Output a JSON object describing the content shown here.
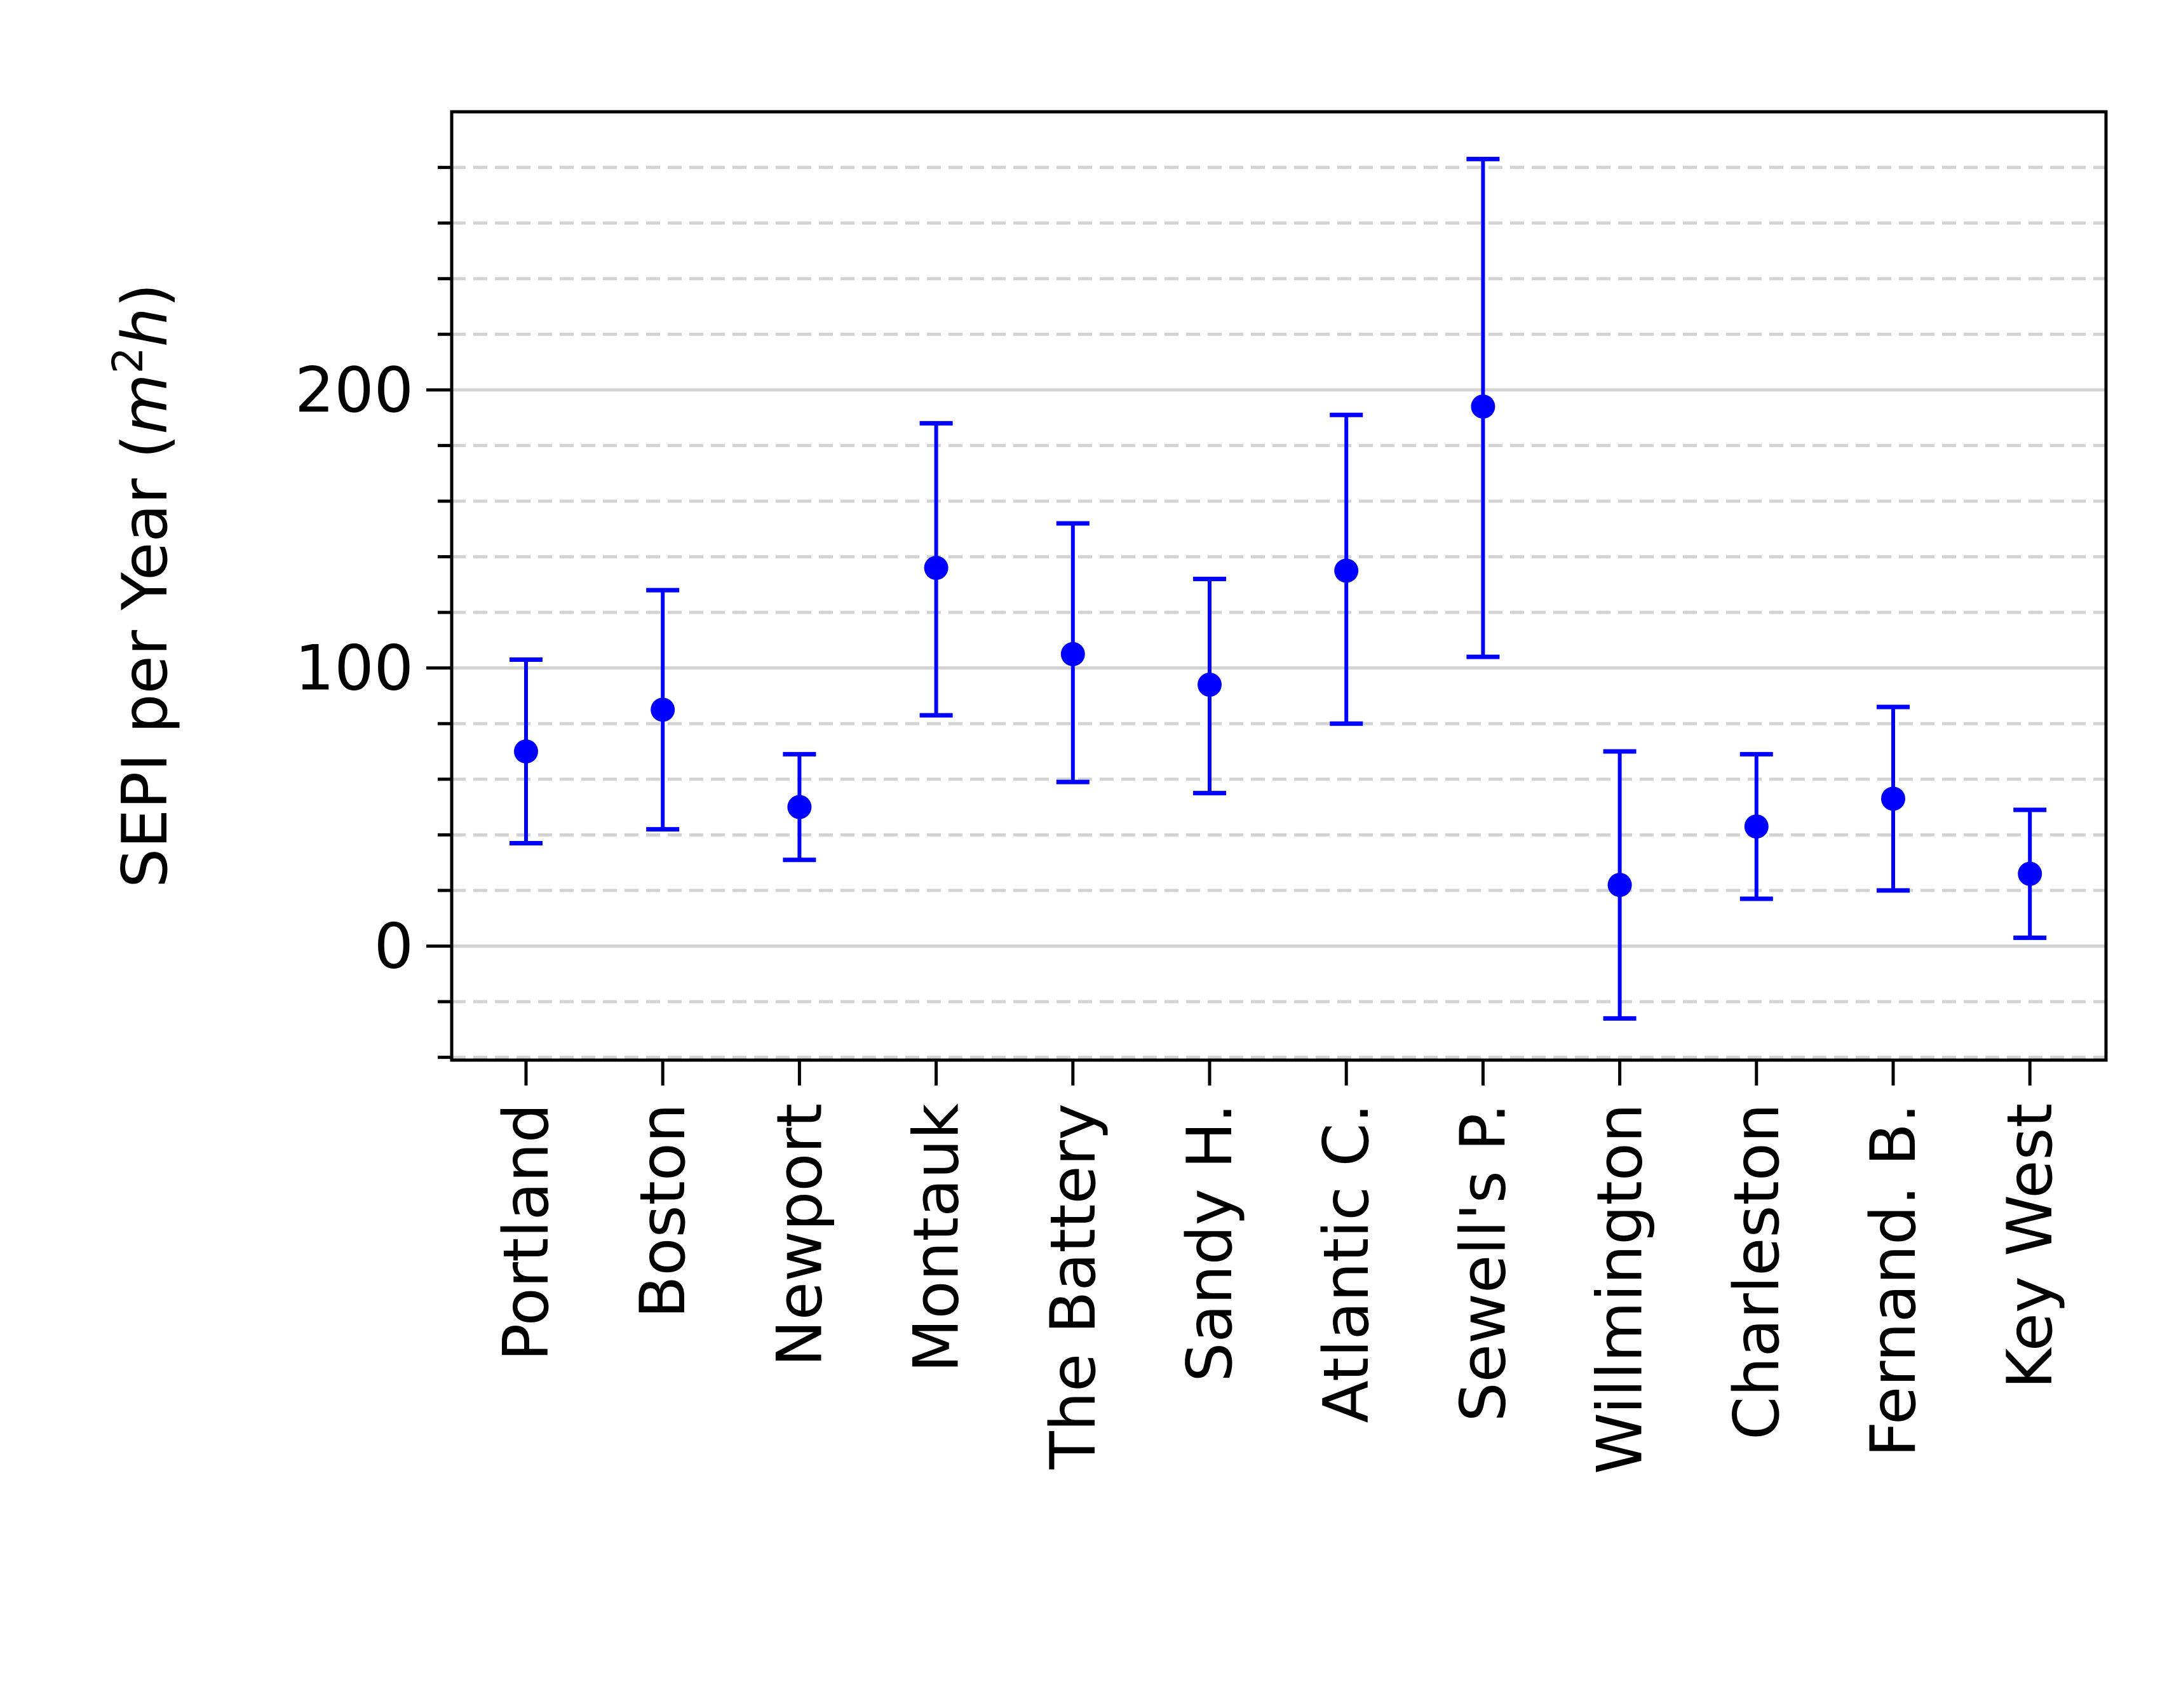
{
  "chart_data": {
    "type": "scatter",
    "subtype": "errorbar",
    "title": "",
    "xlabel": "",
    "ylabel": "SEPI per Year (",
    "ylabel_unit": "m",
    "ylabel_unit_sup": "2",
    "ylabel_unit_tail": "h",
    "ylabel_close": ")",
    "categories": [
      "Portland",
      "Boston",
      "Newport",
      "Montauk",
      "The Battery",
      "Sandy H.",
      "Atlantic C.",
      "Sewell's P.",
      "Willmington",
      "Charleston",
      "Fernand. B.",
      "Key West"
    ],
    "values": [
      70,
      85,
      50,
      136,
      105,
      94,
      135,
      194,
      22,
      43,
      53,
      26
    ],
    "err_lower": [
      37,
      42,
      31,
      83,
      59,
      55,
      80,
      104,
      -26,
      17,
      20,
      3
    ],
    "err_upper": [
      103,
      128,
      69,
      188,
      152,
      132,
      191,
      283,
      70,
      69,
      86,
      49
    ],
    "ylim": [
      -41,
      300
    ],
    "yticks_major": [
      0,
      100,
      200
    ],
    "ytick_labels": [
      "0",
      "100",
      "200"
    ],
    "yticks_minor": [
      -40,
      -20,
      20,
      40,
      60,
      80,
      120,
      140,
      160,
      180,
      220,
      240,
      260,
      280
    ],
    "grid": {
      "major": "solid",
      "minor": "dashed"
    },
    "colors": {
      "series": "#0000ff",
      "grid": "#d3d3d3",
      "axis": "#000000"
    }
  }
}
